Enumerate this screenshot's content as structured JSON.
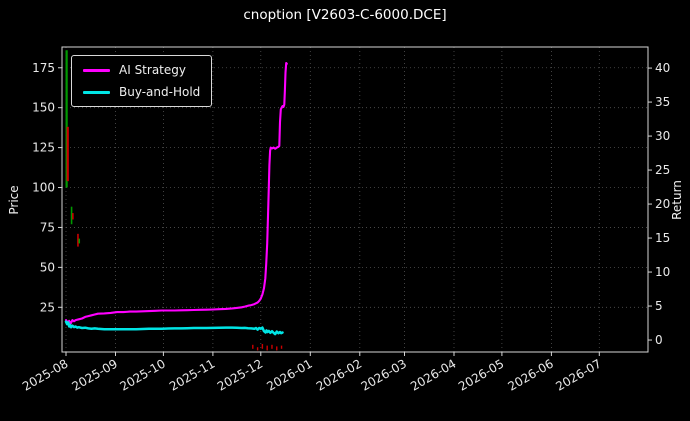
{
  "chart_data": {
    "type": "line",
    "title": "cnoption [V2603-C-6000.DCE]",
    "ylabel_left": "Price",
    "ylabel_right": "Return",
    "grid": true,
    "legend_position": "upper-left",
    "x_domain": [
      -2.5,
      364.5
    ],
    "x_ticks": [
      {
        "day": 0,
        "label": "2025-08"
      },
      {
        "day": 31,
        "label": "2025-09"
      },
      {
        "day": 61,
        "label": "2025-10"
      },
      {
        "day": 92,
        "label": "2025-11"
      },
      {
        "day": 122,
        "label": "2025-12"
      },
      {
        "day": 153,
        "label": "2026-01"
      },
      {
        "day": 184,
        "label": "2026-02"
      },
      {
        "day": 212,
        "label": "2026-03"
      },
      {
        "day": 243,
        "label": "2026-04"
      },
      {
        "day": 273,
        "label": "2026-05"
      },
      {
        "day": 304,
        "label": "2026-06"
      },
      {
        "day": 334,
        "label": "2026-07"
      }
    ],
    "price_axis": {
      "min": -3,
      "max": 188,
      "ticks": [
        25,
        50,
        75,
        100,
        125,
        150,
        175
      ]
    },
    "return_axis": {
      "min": -1.76,
      "max": 43.1,
      "ticks": [
        0,
        5,
        10,
        15,
        20,
        25,
        30,
        35,
        40
      ]
    },
    "series": [
      {
        "name": "AI Strategy",
        "color": "#ff00ff",
        "axis": "price",
        "width": 2.1,
        "points": [
          [
            0,
            17
          ],
          [
            1,
            15.5
          ],
          [
            2,
            16.5
          ],
          [
            3,
            15
          ],
          [
            4,
            17
          ],
          [
            5,
            16.2
          ],
          [
            6,
            17
          ],
          [
            8,
            17.5
          ],
          [
            10,
            18
          ],
          [
            12,
            19
          ],
          [
            14,
            19.5
          ],
          [
            16,
            20
          ],
          [
            18,
            20.5
          ],
          [
            20,
            21
          ],
          [
            24,
            21.2
          ],
          [
            28,
            21.5
          ],
          [
            32,
            22
          ],
          [
            36,
            22
          ],
          [
            40,
            22.3
          ],
          [
            44,
            22.3
          ],
          [
            48,
            22.5
          ],
          [
            52,
            22.6
          ],
          [
            56,
            22.8
          ],
          [
            60,
            23
          ],
          [
            64,
            23
          ],
          [
            68,
            23
          ],
          [
            72,
            23.1
          ],
          [
            76,
            23.2
          ],
          [
            80,
            23.3
          ],
          [
            84,
            23.4
          ],
          [
            88,
            23.5
          ],
          [
            92,
            23.6
          ],
          [
            96,
            23.8
          ],
          [
            100,
            24
          ],
          [
            104,
            24.3
          ],
          [
            107,
            24.6
          ],
          [
            110,
            25
          ],
          [
            112,
            25.4
          ],
          [
            114,
            26
          ],
          [
            116,
            26.4
          ],
          [
            118,
            27
          ],
          [
            120,
            28
          ],
          [
            121,
            29
          ],
          [
            122,
            30.5
          ],
          [
            123,
            33
          ],
          [
            124,
            37
          ],
          [
            124.8,
            43
          ],
          [
            125.4,
            52
          ],
          [
            126,
            65
          ],
          [
            126.5,
            82
          ],
          [
            127,
            100
          ],
          [
            127.4,
            114
          ],
          [
            127.8,
            123
          ],
          [
            128.2,
            125
          ],
          [
            129,
            124.5
          ],
          [
            130,
            125
          ],
          [
            131,
            124.3
          ],
          [
            132,
            125
          ],
          [
            133,
            125.5
          ],
          [
            133.6,
            126
          ],
          [
            134,
            141
          ],
          [
            134.5,
            149
          ],
          [
            135,
            150
          ],
          [
            135.6,
            151
          ],
          [
            136.2,
            150.5
          ],
          [
            136.7,
            152
          ],
          [
            137.1,
            161
          ],
          [
            137.5,
            172
          ],
          [
            137.9,
            178
          ],
          [
            138.3,
            177.5
          ]
        ]
      },
      {
        "name": "Buy-and-Hold",
        "color": "#00e5e5",
        "axis": "price",
        "width": 2.5,
        "points": [
          [
            0,
            16
          ],
          [
            0.7,
            14.5
          ],
          [
            1.4,
            15.5
          ],
          [
            2,
            13
          ],
          [
            2.6,
            14
          ],
          [
            3.2,
            12.5
          ],
          [
            4,
            13.5
          ],
          [
            5,
            12.6
          ],
          [
            6,
            13
          ],
          [
            7,
            12.3
          ],
          [
            8,
            12.5
          ],
          [
            10,
            12
          ],
          [
            12,
            12.2
          ],
          [
            14,
            11.8
          ],
          [
            16,
            11.6
          ],
          [
            18,
            11.8
          ],
          [
            20,
            11.5
          ],
          [
            24,
            11.3
          ],
          [
            28,
            11.2
          ],
          [
            32,
            11.2
          ],
          [
            36,
            11.3
          ],
          [
            40,
            11.2
          ],
          [
            44,
            11.3
          ],
          [
            48,
            11.4
          ],
          [
            52,
            11.5
          ],
          [
            56,
            11.5
          ],
          [
            60,
            11.6
          ],
          [
            64,
            11.7
          ],
          [
            68,
            11.8
          ],
          [
            72,
            11.8
          ],
          [
            76,
            11.9
          ],
          [
            80,
            12
          ],
          [
            84,
            12
          ],
          [
            88,
            12
          ],
          [
            92,
            12.1
          ],
          [
            96,
            12.2
          ],
          [
            100,
            12.3
          ],
          [
            104,
            12.3
          ],
          [
            107,
            12.2
          ],
          [
            110,
            12
          ],
          [
            112,
            12.1
          ],
          [
            114,
            11.9
          ],
          [
            116,
            11.8
          ],
          [
            118,
            11.5
          ],
          [
            119,
            12
          ],
          [
            120,
            11
          ],
          [
            121,
            12
          ],
          [
            122,
            11.5
          ],
          [
            123,
            12.3
          ],
          [
            124,
            10
          ],
          [
            125,
            9.2
          ],
          [
            125.6,
            10.5
          ],
          [
            126.2,
            9.5
          ],
          [
            127,
            10.2
          ],
          [
            128,
            9
          ],
          [
            129,
            10
          ],
          [
            130,
            9
          ],
          [
            131,
            8.2
          ],
          [
            132,
            9.8
          ],
          [
            133,
            8.8
          ],
          [
            134,
            9.5
          ],
          [
            134.8,
            8.8
          ],
          [
            135.6,
            9.2
          ]
        ]
      }
    ],
    "candles": [
      {
        "day": 0.4,
        "low": 100,
        "high": 186,
        "color": "#009900",
        "width": 2.2
      },
      {
        "day": 1.1,
        "low": 104,
        "high": 138,
        "color": "#cc0000",
        "width": 2.2
      },
      {
        "day": 3.5,
        "low": 77,
        "high": 88,
        "color": "#009900",
        "width": 1.6
      },
      {
        "day": 4.3,
        "low": 80,
        "high": 84,
        "color": "#cc0000",
        "width": 1.6
      },
      {
        "day": 7.5,
        "low": 63,
        "high": 71,
        "color": "#cc0000",
        "width": 1.6
      },
      {
        "day": 8.3,
        "low": 65,
        "high": 68,
        "color": "#009900",
        "width": 1.6
      }
    ],
    "bottom_marks": [
      {
        "day": 117,
        "low": -1,
        "high": 1.5,
        "color": "#cc0000"
      },
      {
        "day": 120,
        "low": -2,
        "high": 0,
        "color": "#cc0000"
      },
      {
        "day": 123,
        "low": -1,
        "high": 2,
        "color": "#cc0000"
      },
      {
        "day": 126,
        "low": -2,
        "high": 1,
        "color": "#cc0000"
      },
      {
        "day": 129,
        "low": -1,
        "high": 1.5,
        "color": "#cc0000"
      },
      {
        "day": 132,
        "low": -2,
        "high": 0.5,
        "color": "#cc0000"
      },
      {
        "day": 135,
        "low": -1,
        "high": 1,
        "color": "#cc0000"
      }
    ]
  }
}
